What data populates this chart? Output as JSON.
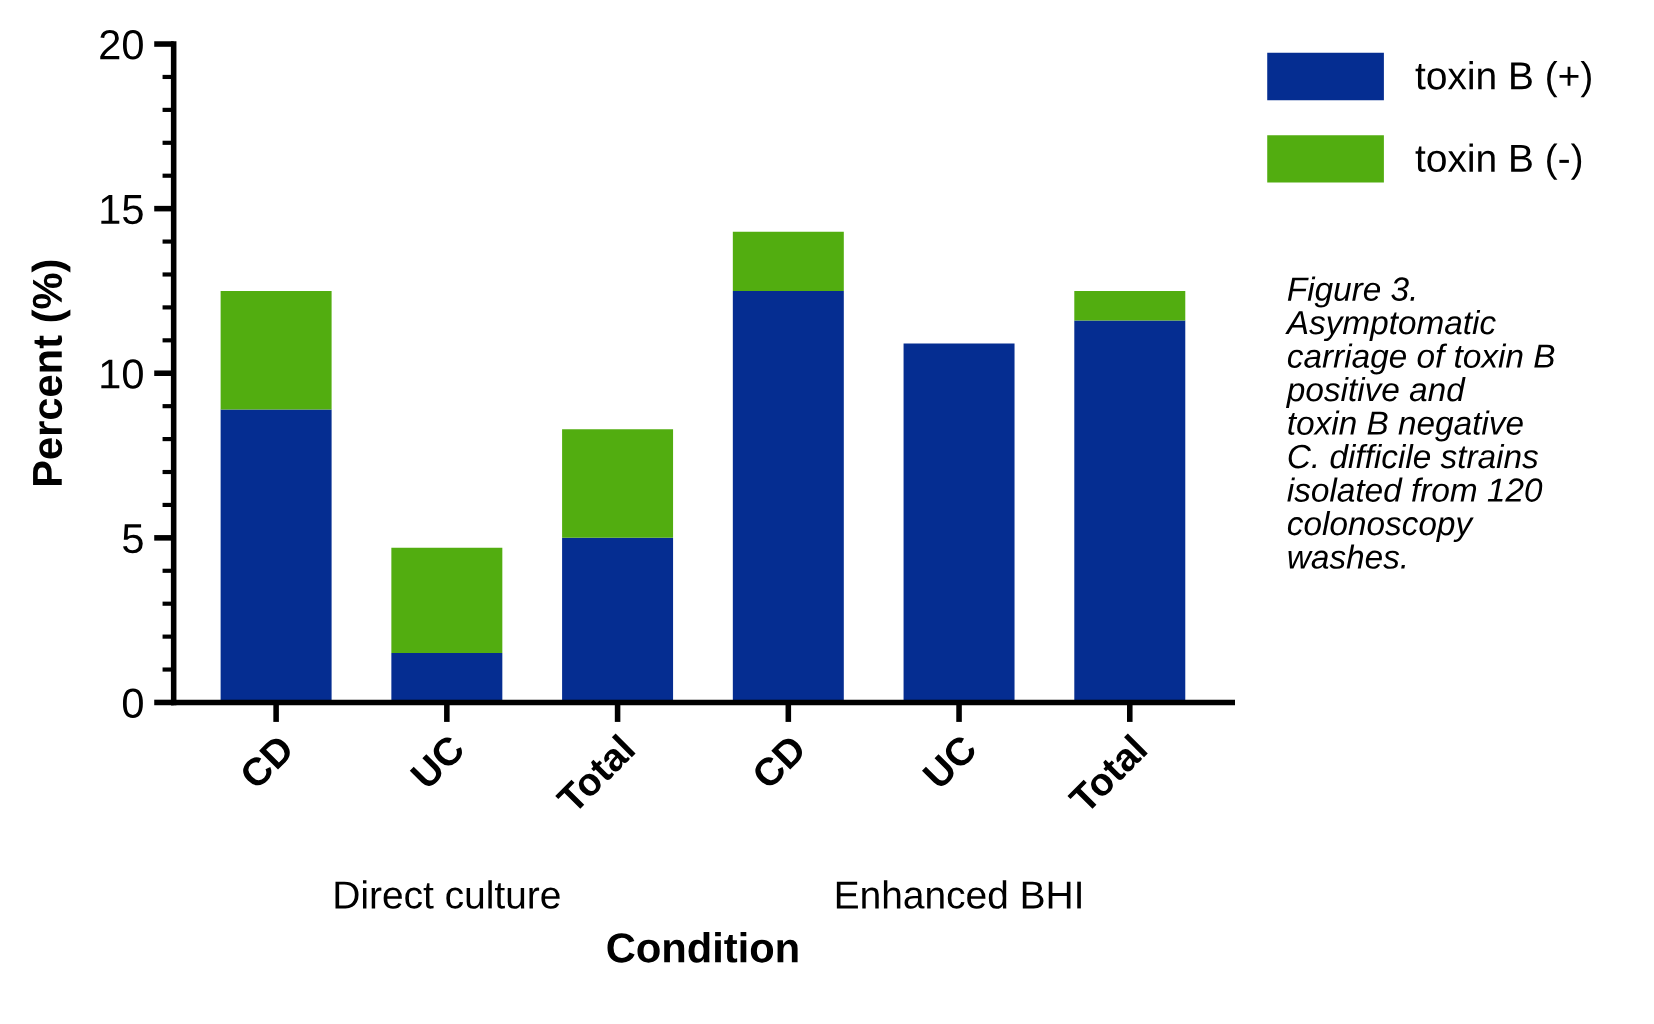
{
  "chart_data": {
    "type": "bar",
    "stacked": true,
    "xlabel": "Condition",
    "ylabel": "Percent (%)",
    "categories": [
      "CD",
      "UC",
      "Total",
      "CD",
      "UC",
      "Total"
    ],
    "series": [
      {
        "name": "toxin B (+)",
        "color": "#052d91",
        "values": [
          8.9,
          1.5,
          5.0,
          12.5,
          10.9,
          11.6
        ]
      },
      {
        "name": "toxin B (-)",
        "color": "#52ad10",
        "values": [
          3.6,
          3.2,
          3.3,
          1.8,
          0,
          0.9
        ]
      }
    ],
    "ylim": [
      0,
      20
    ],
    "yticks": [
      0,
      {
        "value": 1,
        "label": null
      },
      {
        "value": 2,
        "label": null
      },
      {
        "value": 3,
        "label": null
      },
      {
        "value": 4,
        "label": null
      },
      5,
      {
        "value": 6,
        "label": null
      },
      {
        "value": 7,
        "label": null
      },
      {
        "value": 8,
        "label": null
      },
      {
        "value": 9,
        "label": null
      },
      10,
      {
        "value": 11,
        "label": null
      },
      {
        "value": 12,
        "label": null
      },
      {
        "value": 13,
        "label": null
      },
      {
        "value": 14,
        "label": null
      },
      15,
      {
        "value": 16,
        "label": null
      },
      {
        "value": 17,
        "label": null
      },
      {
        "value": 18,
        "label": null
      },
      {
        "value": 19,
        "label": null
      },
      20
    ],
    "grid": false,
    "legend": "top right",
    "annotations": [
      "Direct culture",
      "Enhanced BHI",
      "Figure 3.\nAsymptomatic\ncarriage of toxin B\npositive and\ntoxin B negative\nC. difficile strains\nisolated from 120\ncolonoscopy\nwashes."
    ]
  }
}
